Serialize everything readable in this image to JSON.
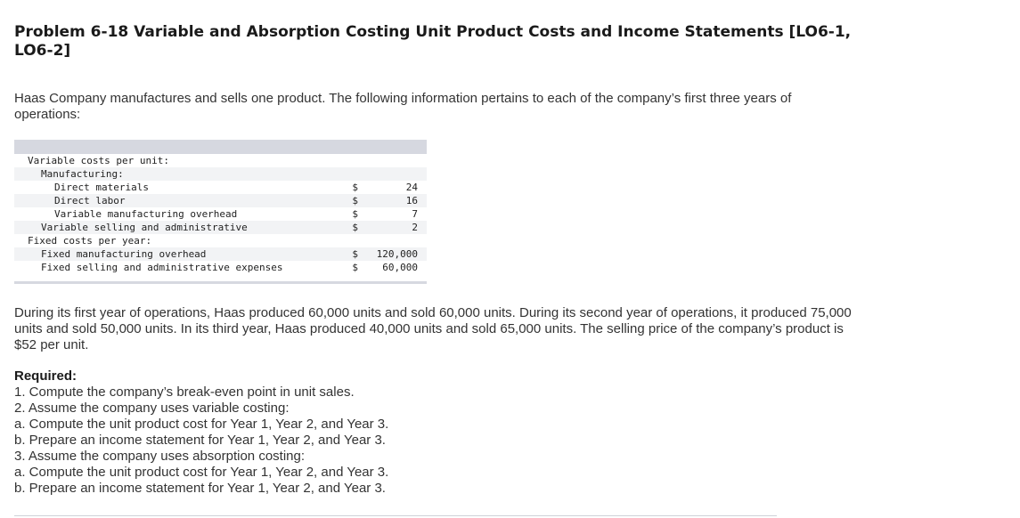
{
  "title": "Problem 6-18 Variable and Absorption Costing Unit Product Costs and Income Statements [LO6-1, LO6-2]",
  "intro": "Haas Company manufactures and sells one product. The following information pertains to each of the company’s first three years of operations:",
  "cost_table": {
    "rows": [
      {
        "label": "Variable costs per unit:",
        "indent": 0,
        "currency": "",
        "value": ""
      },
      {
        "label": "Manufacturing:",
        "indent": 1,
        "currency": "",
        "value": ""
      },
      {
        "label": "Direct materials",
        "indent": 2,
        "currency": "$",
        "value": "24"
      },
      {
        "label": "Direct labor",
        "indent": 2,
        "currency": "$",
        "value": "16"
      },
      {
        "label": "Variable manufacturing overhead",
        "indent": 2,
        "currency": "$",
        "value": "7"
      },
      {
        "label": "Variable selling and administrative",
        "indent": 1,
        "currency": "$",
        "value": "2"
      },
      {
        "label": "Fixed costs per year:",
        "indent": 0,
        "currency": "",
        "value": ""
      },
      {
        "label": "Fixed manufacturing overhead",
        "indent": 1,
        "currency": "$",
        "value": "120,000"
      },
      {
        "label": "Fixed selling and administrative expenses",
        "indent": 1,
        "currency": "$",
        "value": "60,000"
      }
    ]
  },
  "operations_paragraph": "During its first year of operations, Haas produced 60,000 units and sold 60,000 units. During its second year of operations, it produced 75,000 units and sold 50,000 units. In its third year, Haas produced 40,000 units and sold 65,000 units. The selling price of the company’s product is $52 per unit.",
  "required": {
    "heading": "Required:",
    "items": [
      "1. Compute the company’s break-even point in unit sales.",
      "2. Assume the company uses variable costing:",
      "a. Compute the unit product cost for Year 1, Year 2, and Year 3.",
      "b. Prepare an income statement for Year 1, Year 2, and Year 3.",
      "3. Assume the company uses absorption costing:",
      "a. Compute the unit product cost for Year 1, Year 2, and Year 3.",
      "b. Prepare an income statement for Year 1, Year 2, and Year 3."
    ]
  }
}
